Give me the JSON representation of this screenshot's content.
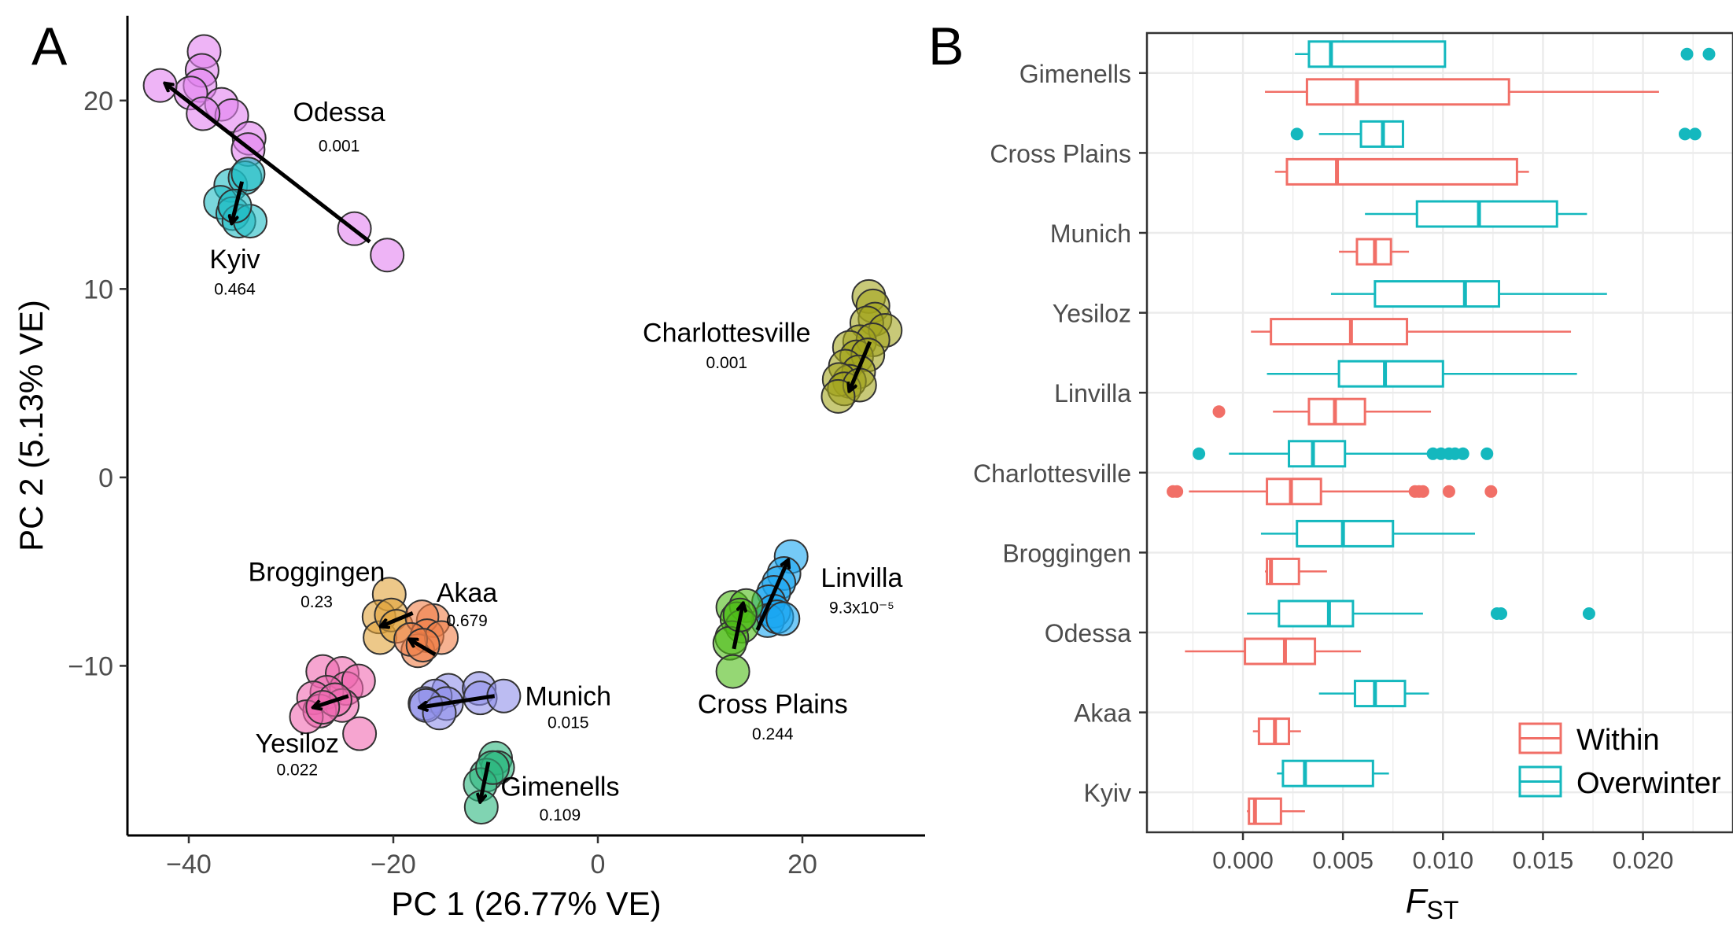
{
  "chart_data": [
    {
      "panel": "A",
      "type": "scatter",
      "xlabel": "PC 1 (26.77% VE)",
      "ylabel": "PC 2 (5.13% VE)",
      "xlim": [
        -46,
        32
      ],
      "ylim": [
        -19,
        24.5
      ],
      "xticks": [
        -40,
        -20,
        0,
        20
      ],
      "yticks": [
        -10,
        0,
        10,
        20
      ],
      "xtick_labels": [
        "−40",
        "−20",
        "0",
        "20"
      ],
      "ytick_labels": [
        "−10",
        "0",
        "10",
        "20"
      ],
      "grid": false,
      "groups": [
        {
          "name": "Odessa",
          "value": "0.001",
          "color": "#e382f0",
          "points": [
            [
              -38.5,
              22.6
            ],
            [
              -38.7,
              21.6
            ],
            [
              -38.9,
              20.8
            ],
            [
              -39.8,
              20.4
            ],
            [
              -42.8,
              20.8
            ],
            [
              -36.8,
              19.8
            ],
            [
              -35.8,
              19.2
            ],
            [
              -38.6,
              19.3
            ],
            [
              -34.1,
              18
            ],
            [
              -34.2,
              17.4
            ],
            [
              -23.8,
              13.2
            ],
            [
              -20.6,
              11.8
            ]
          ],
          "arrow": [
            [
              -22.3,
              12.5
            ],
            [
              -42.3,
              20.9
            ]
          ],
          "label_pos": [
            -25.3,
            18.9
          ],
          "value_pos": [
            -25.3,
            17.3
          ]
        },
        {
          "name": "Kyiv",
          "value": "0.464",
          "color": "#1fbcc4",
          "points": [
            [
              -35.9,
              15.5
            ],
            [
              -34.5,
              15.9
            ],
            [
              -34.2,
              16.1
            ],
            [
              -36.9,
              14.6
            ],
            [
              -35.7,
              14
            ],
            [
              -35.1,
              13.6
            ],
            [
              -34,
              13.6
            ],
            [
              -35.5,
              14.4
            ]
          ],
          "arrow": [
            [
              -34.8,
              15.7
            ],
            [
              -35.8,
              13.5
            ]
          ],
          "label_pos": [
            -35.5,
            11.1
          ],
          "value_pos": [
            -35.5,
            9.7
          ]
        },
        {
          "name": "Charlottesville",
          "value": "0.001",
          "color": "#a4a51e",
          "points": [
            [
              26.5,
              9.6
            ],
            [
              26.9,
              9.1
            ],
            [
              27.1,
              8.4
            ],
            [
              26.3,
              8.2
            ],
            [
              28.1,
              7.8
            ],
            [
              25.6,
              7.2
            ],
            [
              26.9,
              7.3
            ],
            [
              24.6,
              6.9
            ],
            [
              25.3,
              6.4
            ],
            [
              26.4,
              6.5
            ],
            [
              24.2,
              5.9
            ],
            [
              25.5,
              5.6
            ],
            [
              24.6,
              5.1
            ],
            [
              23.6,
              5.2
            ],
            [
              24.1,
              4.7
            ],
            [
              25.6,
              4.9
            ],
            [
              23.5,
              4.3
            ]
          ],
          "arrow": [
            [
              26.6,
              7.2
            ],
            [
              24.6,
              4.6
            ]
          ],
          "label_pos": [
            12.6,
            7.2
          ],
          "value_pos": [
            12.6,
            5.8
          ]
        },
        {
          "name": "Linvilla",
          "value": "9.3x10⁻⁵",
          "color": "#19a6f2",
          "points": [
            [
              18.9,
              -4.2
            ],
            [
              18.2,
              -5.1
            ],
            [
              17.7,
              -5.6
            ],
            [
              17.2,
              -6.1
            ],
            [
              16.7,
              -6.6
            ],
            [
              17.2,
              -7.1
            ],
            [
              16.6,
              -7.6
            ],
            [
              17.5,
              -7.4
            ],
            [
              18.1,
              -7.5
            ]
          ],
          "arrow": [
            [
              15.6,
              -8.1
            ],
            [
              18.6,
              -4.4
            ]
          ],
          "label_pos": [
            25.8,
            -5.8
          ],
          "value_pos": [
            25.8,
            -7.2
          ]
        },
        {
          "name": "Cross Plains",
          "value": "0.244",
          "color": "#4ebd17",
          "points": [
            [
              13.2,
              -6.9
            ],
            [
              14.5,
              -6.8
            ],
            [
              13.6,
              -7.5
            ],
            [
              14.1,
              -7.9
            ],
            [
              13.1,
              -8.5
            ],
            [
              12.9,
              -8.8
            ],
            [
              13.9,
              -7.3
            ],
            [
              13.2,
              -10.3
            ]
          ],
          "arrow": [
            [
              13.3,
              -9.1
            ],
            [
              14.2,
              -6.7
            ]
          ],
          "label_pos": [
            17.1,
            -12.5
          ],
          "value_pos": [
            17.1,
            -13.9
          ]
        },
        {
          "name": "Broggingen",
          "value": "0.23",
          "color": "#e1a33a",
          "points": [
            [
              -20.4,
              -6.2
            ],
            [
              -21.4,
              -7.4
            ],
            [
              -21.3,
              -8.5
            ],
            [
              -20.2,
              -7.3
            ],
            [
              -19.7,
              -7.9
            ]
          ],
          "arrow": [
            [
              -18.1,
              -7.2
            ],
            [
              -21.2,
              -7.9
            ]
          ],
          "label_pos": [
            -27.5,
            -5.5
          ],
          "value_pos": [
            -27.5,
            -6.9
          ]
        },
        {
          "name": "Akaa",
          "value": "0.679",
          "color": "#f07f47",
          "points": [
            [
              -16.1,
              -7.6
            ],
            [
              -17.2,
              -7.4
            ],
            [
              -16.7,
              -8.4
            ],
            [
              -17.6,
              -9.2
            ],
            [
              -15.3,
              -8.5
            ],
            [
              -18.3,
              -8.6
            ],
            [
              -17.1,
              -8.9
            ]
          ],
          "arrow": [
            [
              -15.9,
              -9.4
            ],
            [
              -18.4,
              -8.6
            ]
          ],
          "label_pos": [
            -12.8,
            -6.6
          ],
          "value_pos": [
            -12.8,
            -7.9
          ]
        },
        {
          "name": "Yesiloz",
          "value": "0.022",
          "color": "#f069b1",
          "points": [
            [
              -26.9,
              -10.3
            ],
            [
              -25,
              -10.4
            ],
            [
              -24.6,
              -11.2
            ],
            [
              -23.4,
              -10.8
            ],
            [
              -26.5,
              -11.4
            ],
            [
              -25,
              -12.1
            ],
            [
              -27.8,
              -11.7
            ],
            [
              -27.2,
              -12.4
            ],
            [
              -25.7,
              -11.8
            ],
            [
              -28.5,
              -12.7
            ],
            [
              -23.3,
              -13.6
            ],
            [
              -26.9,
              -12.2
            ]
          ],
          "arrow": [
            [
              -24.4,
              -11.6
            ],
            [
              -27.8,
              -12.2
            ]
          ],
          "label_pos": [
            -29.4,
            -14.6
          ],
          "value_pos": [
            -29.4,
            -15.8
          ]
        },
        {
          "name": "Munich",
          "value": "0.015",
          "color": "#8f8fe9",
          "points": [
            [
              -14.6,
              -11.3
            ],
            [
              -15.9,
              -11.6
            ],
            [
              -11.6,
              -11.2
            ],
            [
              -11.5,
              -11.7
            ],
            [
              -9.2,
              -11.6
            ],
            [
              -16.9,
              -12
            ],
            [
              -14.8,
              -12
            ],
            [
              -16.8,
              -12.1
            ],
            [
              -15.5,
              -12.5
            ]
          ],
          "arrow": [
            [
              -10.1,
              -11.6
            ],
            [
              -17.4,
              -12.2
            ]
          ],
          "label_pos": [
            -2.9,
            -12.1
          ],
          "value_pos": [
            -2.9,
            -13.3
          ]
        },
        {
          "name": "Gimenells",
          "value": "0.109",
          "color": "#2cb77e",
          "points": [
            [
              -10,
              -14.9
            ],
            [
              -9.8,
              -15.4
            ],
            [
              -10.9,
              -15.8
            ],
            [
              -11.5,
              -16.3
            ],
            [
              -10.3,
              -15.4
            ],
            [
              -11.4,
              -17.5
            ]
          ],
          "arrow": [
            [
              -10.7,
              -15.1
            ],
            [
              -11.5,
              -17.2
            ]
          ],
          "label_pos": [
            -3.7,
            -16.9
          ],
          "value_pos": [
            -3.7,
            -18.2
          ]
        }
      ]
    },
    {
      "panel": "B",
      "type": "box",
      "xlabel": "F",
      "xlabel_sub": "ST",
      "xlim": [
        -0.0048,
        0.0245
      ],
      "xticks": [
        0,
        0.005,
        0.01,
        0.015,
        0.02
      ],
      "xtick_labels": [
        "0.000",
        "0.005",
        "0.010",
        "0.015",
        "0.020"
      ],
      "grid": true,
      "legend_position": "bottom-right",
      "series": [
        {
          "name": "Within",
          "color": "#f16f67"
        },
        {
          "name": "Overwinter",
          "color": "#14b8be"
        }
      ],
      "categories": [
        "Gimenells",
        "Cross Plains",
        "Munich",
        "Yesiloz",
        "Linvilla",
        "Charlottesville",
        "Broggingen",
        "Odessa",
        "Akaa",
        "Kyiv"
      ],
      "boxes": {
        "Within": [
          {
            "whisker_low": 0.0011,
            "q1": 0.0032,
            "median": 0.0057,
            "q3": 0.0133,
            "whisker_high": 0.0208,
            "outliers": []
          },
          {
            "whisker_low": 0.0016,
            "q1": 0.0022,
            "median": 0.0047,
            "q3": 0.0137,
            "whisker_high": 0.0143,
            "outliers": []
          },
          {
            "whisker_low": 0.0048,
            "q1": 0.0057,
            "median": 0.0066,
            "q3": 0.0074,
            "whisker_high": 0.0083,
            "outliers": []
          },
          {
            "whisker_low": 0.0004,
            "q1": 0.0014,
            "median": 0.0054,
            "q3": 0.0082,
            "whisker_high": 0.0164,
            "outliers": []
          },
          {
            "whisker_low": 0.0015,
            "q1": 0.0033,
            "median": 0.0046,
            "q3": 0.0061,
            "whisker_high": 0.0094,
            "outliers": [
              -0.0012
            ]
          },
          {
            "whisker_low": -0.0027,
            "q1": 0.0012,
            "median": 0.0024,
            "q3": 0.0039,
            "whisker_high": 0.0083,
            "outliers": [
              -0.0035,
              -0.0033,
              0.0086,
              0.0088,
              0.009,
              0.0103,
              0.0124
            ]
          },
          {
            "whisker_low": 0.0011,
            "q1": 0.0012,
            "median": 0.0014,
            "q3": 0.0028,
            "whisker_high": 0.0042,
            "outliers": []
          },
          {
            "whisker_low": -0.0029,
            "q1": 0.0001,
            "median": 0.0021,
            "q3": 0.0036,
            "whisker_high": 0.0059,
            "outliers": []
          },
          {
            "whisker_low": 0.0005,
            "q1": 0.0008,
            "median": 0.0016,
            "q3": 0.0023,
            "whisker_high": 0.0029,
            "outliers": []
          },
          {
            "whisker_low": 0.0002,
            "q1": 0.0003,
            "median": 0.0006,
            "q3": 0.0019,
            "whisker_high": 0.0031,
            "outliers": []
          }
        ],
        "Overwinter": [
          {
            "whisker_low": 0.0026,
            "q1": 0.0033,
            "median": 0.0044,
            "q3": 0.0101,
            "whisker_high": 0.0101,
            "outliers": [
              0.0222,
              0.0233
            ]
          },
          {
            "whisker_low": 0.0038,
            "q1": 0.0059,
            "median": 0.007,
            "q3": 0.008,
            "whisker_high": 0.008,
            "outliers": [
              0.0027,
              0.0221,
              0.0226
            ]
          },
          {
            "whisker_low": 0.0061,
            "q1": 0.0087,
            "median": 0.0118,
            "q3": 0.0157,
            "whisker_high": 0.0172,
            "outliers": []
          },
          {
            "whisker_low": 0.0044,
            "q1": 0.0066,
            "median": 0.0111,
            "q3": 0.0128,
            "whisker_high": 0.0182,
            "outliers": []
          },
          {
            "whisker_low": 0.0012,
            "q1": 0.0048,
            "median": 0.0071,
            "q3": 0.01,
            "whisker_high": 0.0167,
            "outliers": []
          },
          {
            "whisker_low": -0.0007,
            "q1": 0.0023,
            "median": 0.0035,
            "q3": 0.0051,
            "whisker_high": 0.0095,
            "outliers": [
              -0.0022,
              0.0095,
              0.0099,
              0.0103,
              0.0106,
              0.011,
              0.0122
            ]
          },
          {
            "whisker_low": 0.0009,
            "q1": 0.0027,
            "median": 0.005,
            "q3": 0.0075,
            "whisker_high": 0.0116,
            "outliers": []
          },
          {
            "whisker_low": 0.0002,
            "q1": 0.0018,
            "median": 0.0043,
            "q3": 0.0055,
            "whisker_high": 0.009,
            "outliers": [
              0.0127,
              0.0129,
              0.0173
            ]
          },
          {
            "whisker_low": 0.0038,
            "q1": 0.0056,
            "median": 0.0066,
            "q3": 0.0081,
            "whisker_high": 0.0093,
            "outliers": []
          },
          {
            "whisker_low": 0.0017,
            "q1": 0.002,
            "median": 0.0031,
            "q3": 0.0065,
            "whisker_high": 0.0073,
            "outliers": []
          }
        ]
      }
    }
  ],
  "panel_labels": {
    "a": "A",
    "b": "B"
  },
  "legend": {
    "within": "Within",
    "overwinter": "Overwinter"
  }
}
